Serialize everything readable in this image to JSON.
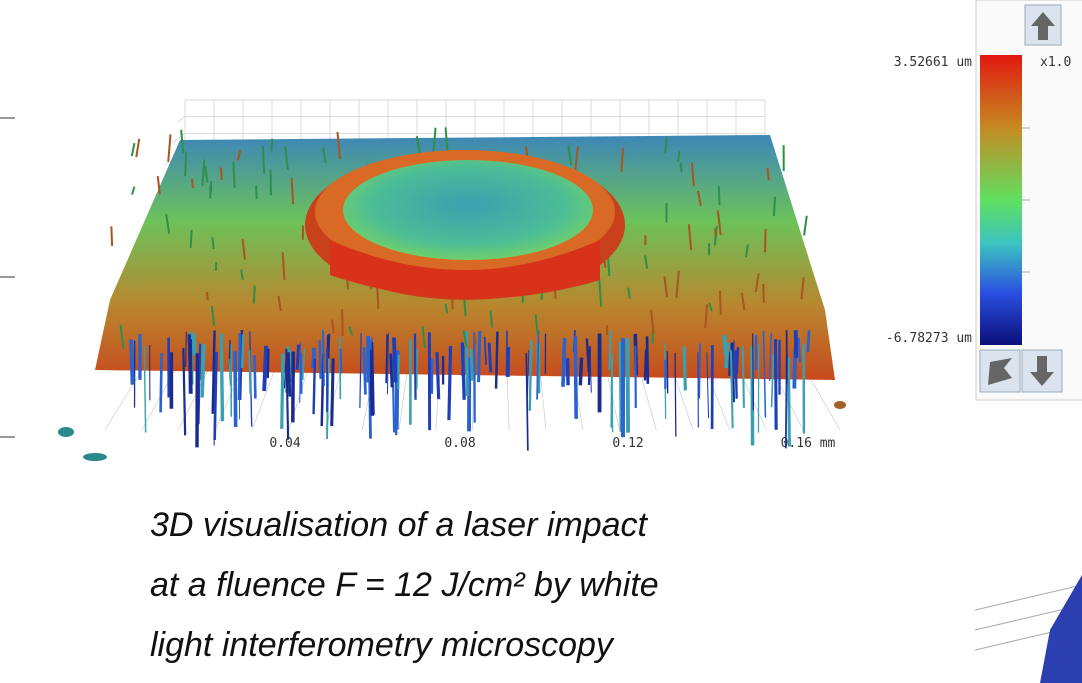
{
  "figure": {
    "x_axis_labels": [
      "0.04",
      "0.08",
      "0.12",
      "0.16 mm"
    ]
  },
  "colorbar": {
    "max_label": "3.52661 um",
    "min_label": "-6.78273 um",
    "scale_label": "x1.0"
  },
  "caption": {
    "lines": [
      "3D visualisation of a laser impact",
      "at a fluence F = 12 J/cm² by white",
      "light interferometry microscopy"
    ]
  }
}
